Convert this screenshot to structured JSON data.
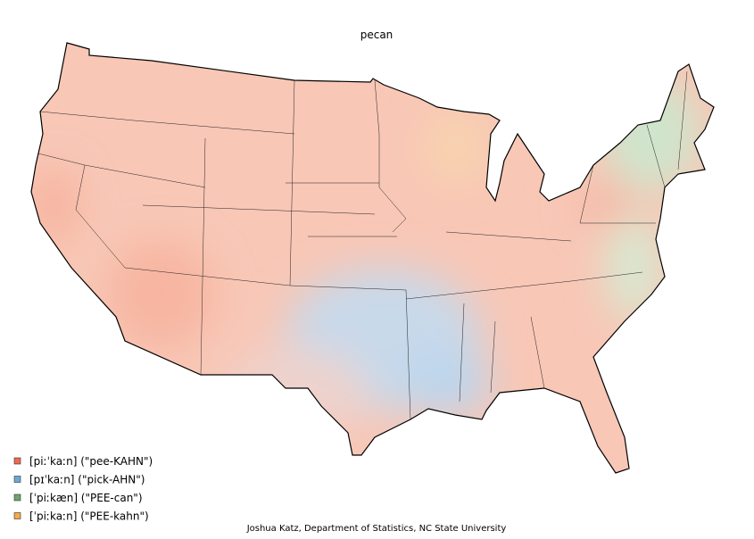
{
  "title": "pecan",
  "legend": [
    {
      "label": "[piːˈkaːn] (\"pee-KAHN\")",
      "color": "#ee6a50"
    },
    {
      "label": "[pɪˈkaːn] (\"pick-AHN\")",
      "color": "#6aa9d6"
    },
    {
      "label": "[ˈpiːkæn] (\"PEE-can\")",
      "color": "#6fa36f"
    },
    {
      "label": "[ˈpiːkaːn] (\"PEE-kahn\")",
      "color": "#f5a94a"
    }
  ],
  "credit": "Joshua Katz, Department of Statistics, NC State University"
}
